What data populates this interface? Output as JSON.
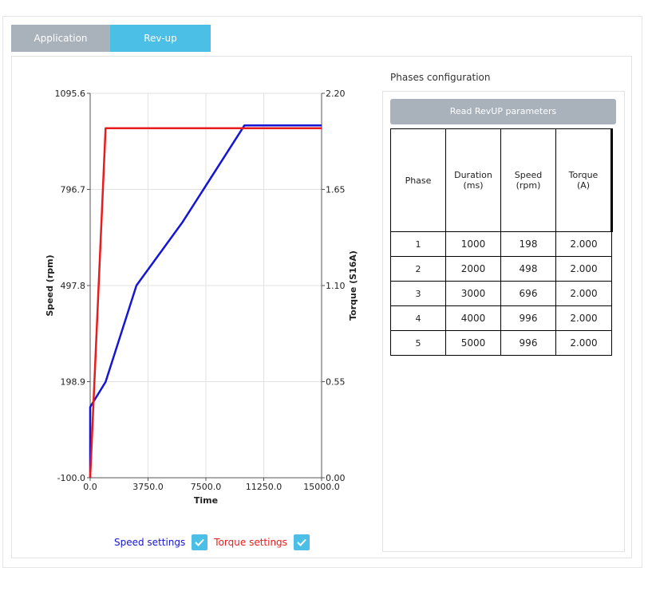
{
  "tabs": [
    {
      "label": "Application",
      "active": false
    },
    {
      "label": "Rev-up",
      "active": true
    }
  ],
  "chart_data": {
    "type": "line",
    "xlabel": "Time",
    "ylabel_left": "Speed (rpm)",
    "ylabel_right": "Torque (S16A)",
    "xlim": [
      0,
      15000
    ],
    "ylim_left": [
      -100,
      1095.6
    ],
    "ylim_right": [
      0,
      2.2
    ],
    "x_ticks": [
      "0.0",
      "3750.0",
      "7500.0",
      "11250.0",
      "15000.0"
    ],
    "y_left_ticks": [
      "-100.0",
      "198.9",
      "497.8",
      "796.7",
      "1095.6"
    ],
    "y_right_ticks": [
      "0.00",
      "0.55",
      "1.10",
      "1.65",
      "2.20"
    ],
    "grid": true,
    "series": [
      {
        "name": "Speed settings",
        "axis": "left",
        "color": "#1515d4",
        "x": [
          0,
          0,
          1000,
          3000,
          6000,
          10000,
          15000
        ],
        "y": [
          -100,
          120,
          198,
          498,
          696,
          996,
          996
        ]
      },
      {
        "name": "Torque settings",
        "axis": "right",
        "color": "#e81c1c",
        "x": [
          0,
          1000,
          3000,
          6000,
          10000,
          15000
        ],
        "y": [
          0,
          2.0,
          2.0,
          2.0,
          2.0,
          2.0
        ]
      }
    ]
  },
  "legend": {
    "speed_label": "Speed settings",
    "torque_label": "Torque settings",
    "speed_color": "#1515d4",
    "torque_color": "#e81c1c",
    "speed_checked": true,
    "torque_checked": true
  },
  "phases": {
    "title": "Phases configuration",
    "read_button": "Read RevUP parameters",
    "headers": [
      {
        "line1": "Phase",
        "line2": ""
      },
      {
        "line1": "Duration",
        "line2": "(ms)"
      },
      {
        "line1": "Speed",
        "line2": "(rpm)"
      },
      {
        "line1": "Torque",
        "line2": "(A)"
      }
    ],
    "rows": [
      {
        "phase": "1",
        "duration": "1000",
        "speed": "198",
        "torque": "2.000"
      },
      {
        "phase": "2",
        "duration": "2000",
        "speed": "498",
        "torque": "2.000"
      },
      {
        "phase": "3",
        "duration": "3000",
        "speed": "696",
        "torque": "2.000"
      },
      {
        "phase": "4",
        "duration": "4000",
        "speed": "996",
        "torque": "2.000"
      },
      {
        "phase": "5",
        "duration": "5000",
        "speed": "996",
        "torque": "2.000"
      }
    ]
  }
}
